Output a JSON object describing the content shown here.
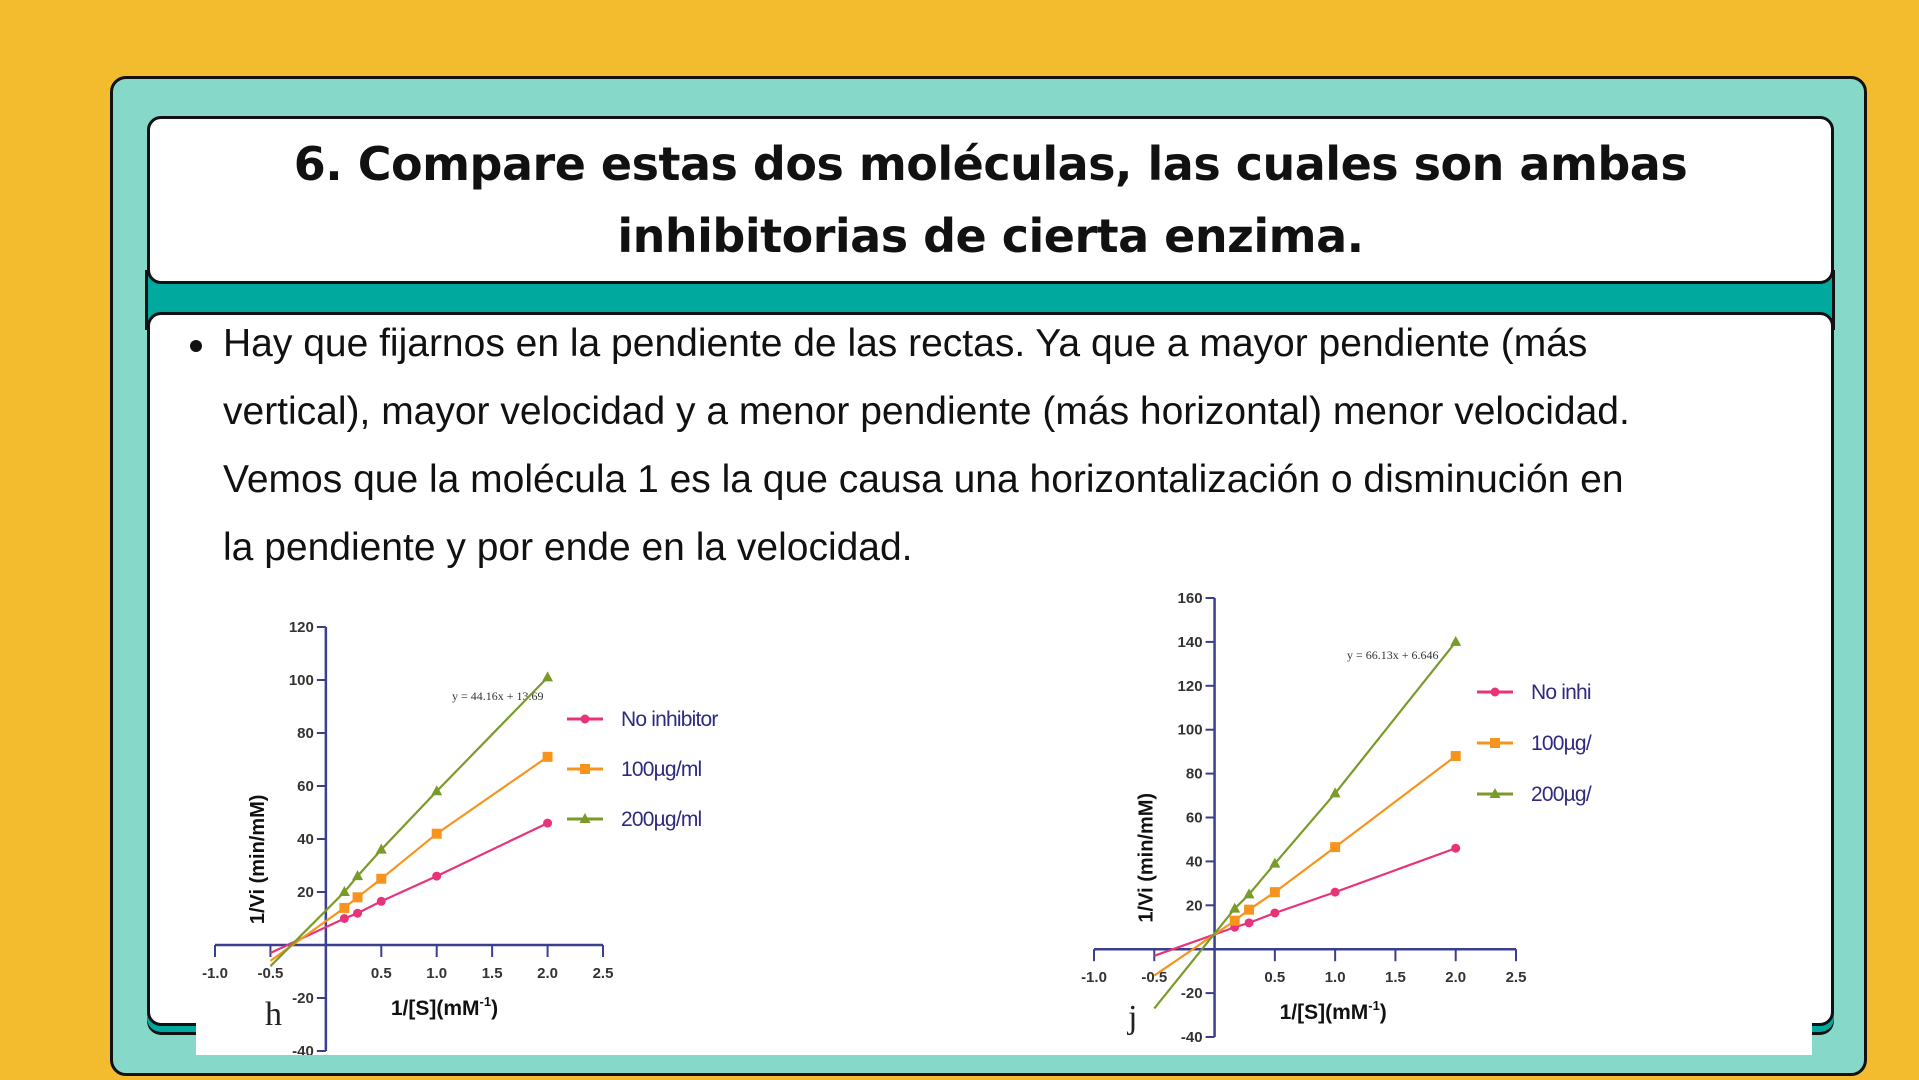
{
  "slide": {
    "title_lines": [
      "6. Compare estas dos moléculas, las cuales son ambas",
      "inhibitorias de cierta enzima."
    ],
    "bullet_lines": [
      "Hay que fijarnos en la pendiente de las rectas. Ya que a mayor pendiente (más",
      "vertical), mayor velocidad y a menor pendiente (más horizontal) menor velocidad.",
      "Vemos que la molécula 1 es la que causa una horizontalización o disminución en",
      "la pendiente y por ende en la velocidad."
    ],
    "colors": {
      "background": "#F2BC2E",
      "panel": "#86D9C9",
      "band": "#00A99D",
      "axis": "#3B3F8F",
      "legend_text": "#2E2A80"
    }
  },
  "chart_data": [
    {
      "type": "line",
      "panel_label": "h",
      "xlabel": "1/[S](mM",
      "xlabel_sup": "-1",
      "xlabel_end": ")",
      "ylabel": "1/Vi (min/mM)",
      "xlim": [
        -1.0,
        2.5
      ],
      "ylim": [
        -40,
        120
      ],
      "xticks": [
        "-1.0",
        "-0.5",
        "0.5",
        "1.0",
        "1.5",
        "2.0",
        "2.5"
      ],
      "xtick_values": [
        -1.0,
        -0.5,
        0.5,
        1.0,
        1.5,
        2.0,
        2.5
      ],
      "yticks": [
        "120",
        "100",
        "80",
        "60",
        "40",
        "20",
        "-20",
        "-40"
      ],
      "ytick_values": [
        120,
        100,
        80,
        60,
        40,
        20,
        -20,
        -40
      ],
      "annotation": "y = 44.16x + 13.69",
      "legend": [
        "No inhibitor",
        "100µg/ml",
        "200µg/ml"
      ],
      "series": [
        {
          "name": "No inhibitor",
          "color": "#E8337A",
          "marker": "circle",
          "x": [
            0.167,
            0.286,
            0.5,
            1.0,
            2.0
          ],
          "y": [
            10,
            12,
            16.5,
            26,
            46
          ],
          "line_from": [
            -0.5,
            -3
          ]
        },
        {
          "name": "100µg/ml",
          "color": "#F7941D",
          "marker": "square",
          "x": [
            0.167,
            0.286,
            0.5,
            1.0,
            2.0
          ],
          "y": [
            14,
            18,
            25,
            42,
            71
          ],
          "line_from": [
            -0.5,
            -6
          ]
        },
        {
          "name": "200µg/ml",
          "color": "#7A9A2A",
          "marker": "triangle",
          "x": [
            0.167,
            0.286,
            0.5,
            1.0,
            2.0
          ],
          "y": [
            20,
            26,
            36,
            58,
            101
          ],
          "line_from": [
            -0.5,
            -8
          ]
        }
      ]
    },
    {
      "type": "line",
      "panel_label": "j",
      "xlabel": "1/[S](mM",
      "xlabel_sup": "-1",
      "xlabel_end": ")",
      "ylabel": "1/Vi (min/mM)",
      "xlim": [
        -1.0,
        2.5
      ],
      "ylim": [
        -40,
        160
      ],
      "xticks": [
        "-1.0",
        "-0.5",
        "0.5",
        "1.0",
        "1.5",
        "2.0",
        "2.5"
      ],
      "xtick_values": [
        -1.0,
        -0.5,
        0.5,
        1.0,
        1.5,
        2.0,
        2.5
      ],
      "yticks": [
        "160",
        "140",
        "120",
        "100",
        "80",
        "60",
        "40",
        "20",
        "-20",
        "-40"
      ],
      "ytick_values": [
        160,
        140,
        120,
        100,
        80,
        60,
        40,
        20,
        -20,
        -40
      ],
      "annotation": "y = 66.13x + 6.646",
      "legend": [
        "No inhi",
        "100µg/",
        "200µg/"
      ],
      "series": [
        {
          "name": "No inhi",
          "color": "#E8337A",
          "marker": "circle",
          "x": [
            0.167,
            0.286,
            0.5,
            1.0,
            2.0
          ],
          "y": [
            10,
            12,
            16.5,
            26,
            46
          ],
          "line_from": [
            -0.5,
            -3
          ]
        },
        {
          "name": "100µg/",
          "color": "#F7941D",
          "marker": "square",
          "x": [
            0.167,
            0.286,
            0.5,
            1.0,
            2.0
          ],
          "y": [
            13,
            18,
            26,
            46.5,
            88
          ],
          "line_from": [
            -0.5,
            -12
          ]
        },
        {
          "name": "200µg/",
          "color": "#7A9A2A",
          "marker": "triangle",
          "x": [
            0.167,
            0.286,
            0.5,
            1.0,
            2.0
          ],
          "y": [
            18.5,
            25,
            39,
            71,
            140
          ],
          "line_from": [
            -0.5,
            -27
          ]
        }
      ]
    }
  ]
}
